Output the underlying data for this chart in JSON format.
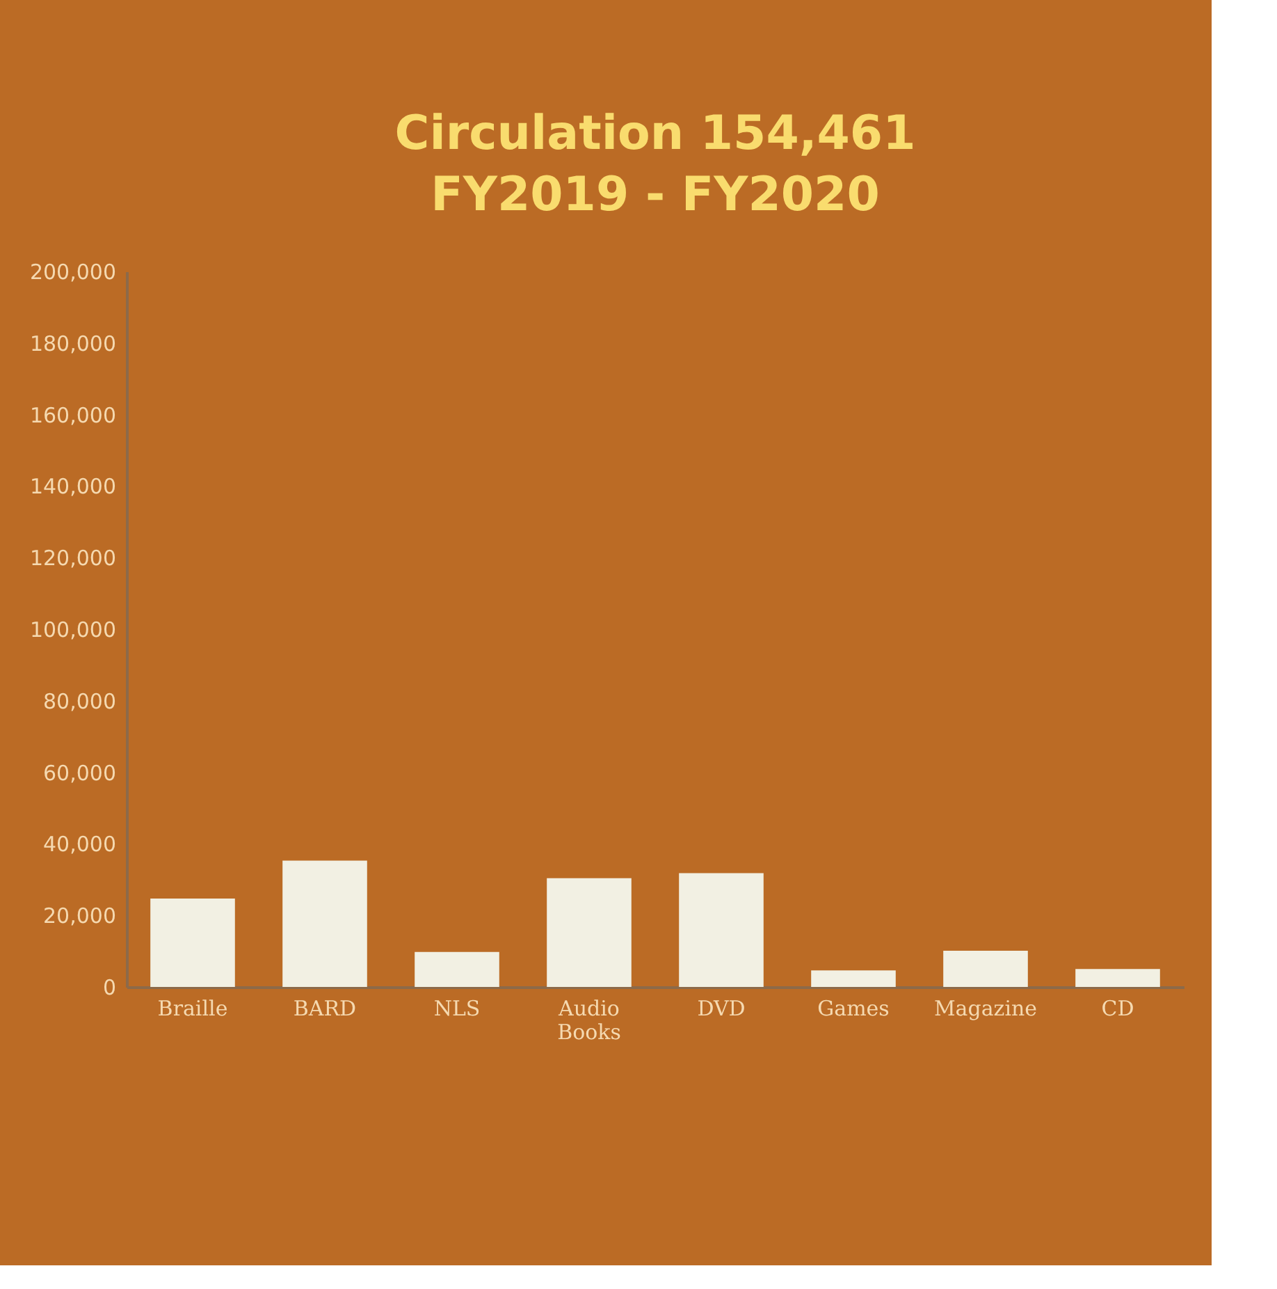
{
  "chart_data": {
    "type": "bar",
    "title": [
      "Circulation 154,461",
      "FY2019 - FY2020"
    ],
    "categories": [
      "Braille",
      "BARD",
      "NLS",
      "Audio Books",
      "DVD",
      "Games",
      "Magazine",
      "CD"
    ],
    "values": [
      24700,
      35300,
      9800,
      30400,
      31800,
      4600,
      10100,
      5000
    ],
    "color": "#f2f0e3",
    "ylim": [
      0,
      200000
    ],
    "yticks": [
      {
        "value": 0,
        "label": "0"
      },
      {
        "value": 20000,
        "label": "20,000"
      },
      {
        "value": 40000,
        "label": "40,000"
      },
      {
        "value": 60000,
        "label": "60,000"
      },
      {
        "value": 80000,
        "label": "80,000"
      },
      {
        "value": 100000,
        "label": "100,000"
      },
      {
        "value": 120000,
        "label": "120,000"
      },
      {
        "value": 140000,
        "label": "140,000"
      },
      {
        "value": 160000,
        "label": "160,000"
      },
      {
        "value": 180000,
        "label": "180,000"
      },
      {
        "value": 200000,
        "label": "200,000"
      }
    ],
    "grid": false
  }
}
